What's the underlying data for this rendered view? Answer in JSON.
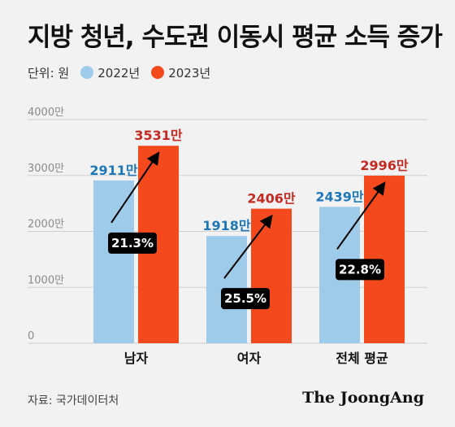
{
  "title": "지방 청년, 수도권 이동시 평균 소득 증가",
  "unit_label": "단위: 원",
  "source": "자료: 국가데이터처",
  "brand": "The JoongAng",
  "colors": {
    "series_2022": "#9fcbeb",
    "series_2023": "#f3491c",
    "label_2022": "#1e78b8",
    "label_2023": "#c42a22",
    "grid": "#cfcfcf",
    "badge_bg": "#000000",
    "badge_text": "#ffffff"
  },
  "chart_data": {
    "type": "bar",
    "categories": [
      "남자",
      "여자",
      "전체 평균"
    ],
    "series": [
      {
        "name": "2022년",
        "values": [
          2911,
          1918,
          2439
        ],
        "labels": [
          "2911만",
          "1918만",
          "2439만"
        ]
      },
      {
        "name": "2023년",
        "values": [
          3531,
          2406,
          2996
        ],
        "labels": [
          "3531만",
          "2406만",
          "2996만"
        ]
      }
    ],
    "growth_labels": [
      "21.3%",
      "25.5%",
      "22.8%"
    ],
    "y_ticks": [
      0,
      1000,
      2000,
      3000,
      4000
    ],
    "y_tick_labels": [
      "0",
      "1000만",
      "2000만",
      "3000만",
      "4000만"
    ],
    "ylim": [
      0,
      4000
    ],
    "grid": true,
    "legend_position": "top-left"
  }
}
